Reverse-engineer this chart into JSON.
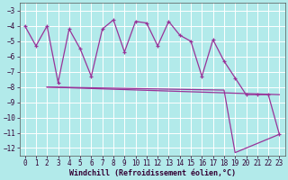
{
  "xlabel": "Windchill (Refroidissement éolien,°C)",
  "bg_color": "#b2eaea",
  "line_color": "#993399",
  "grid_color": "#ffffff",
  "xlim": [
    -0.5,
    23.5
  ],
  "ylim": [
    -12.5,
    -2.5
  ],
  "yticks": [
    -12,
    -11,
    -10,
    -9,
    -8,
    -7,
    -6,
    -5,
    -4,
    -3
  ],
  "xticks": [
    0,
    1,
    2,
    3,
    4,
    5,
    6,
    7,
    8,
    9,
    10,
    11,
    12,
    13,
    14,
    15,
    16,
    17,
    18,
    19,
    20,
    21,
    22,
    23
  ],
  "series1_x": [
    0,
    1,
    2,
    3,
    4,
    5,
    6,
    7,
    8,
    9,
    10,
    11,
    12,
    13,
    14,
    15,
    16,
    17,
    18,
    19,
    20,
    21,
    22,
    23
  ],
  "series1_y": [
    -4.0,
    -5.3,
    -4.0,
    -7.7,
    -4.2,
    -5.5,
    -7.3,
    -4.2,
    -3.6,
    -5.7,
    -3.7,
    -3.8,
    -5.3,
    -3.7,
    -4.6,
    -5.0,
    -7.3,
    -4.9,
    -6.3,
    -7.4,
    -8.5,
    -8.5,
    -8.5,
    -11.1
  ],
  "series2_x": [
    2,
    23
  ],
  "series2_y": [
    -8.0,
    -8.5
  ],
  "series3_x": [
    2,
    18,
    19,
    23
  ],
  "series3_y": [
    -8.0,
    -8.2,
    -12.3,
    -11.1
  ],
  "xlabel_fontsize": 6.0,
  "tick_fontsize": 5.5
}
